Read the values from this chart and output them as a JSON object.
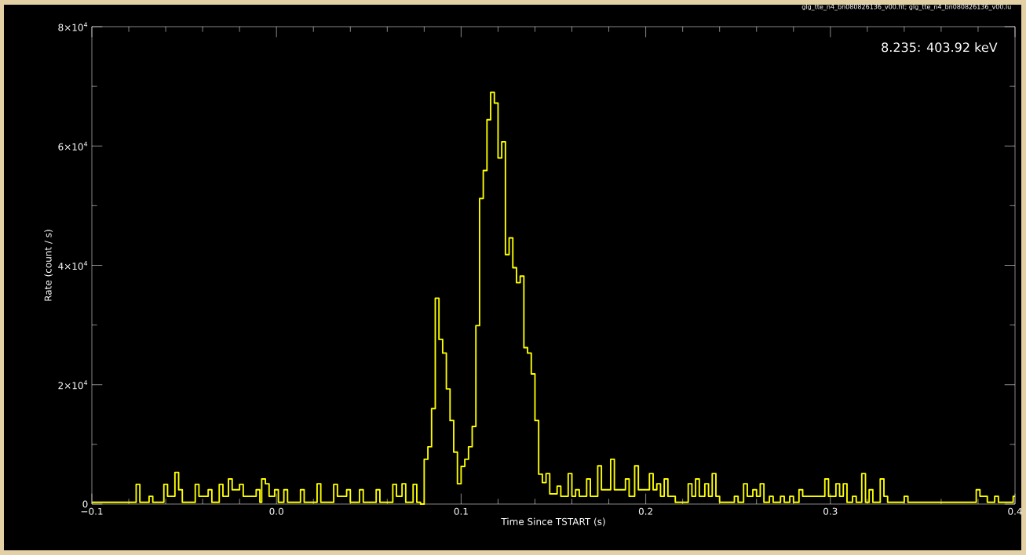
{
  "chart_data": {
    "type": "step",
    "title": "glg_tte_n4_bn080826136_v00.fit; glg_tte_n4_bn080826136_v00.lu",
    "xlabel": "Time Since TSTART (s)",
    "ylabel": "Rate (count / s)",
    "annotations": [
      "8.235: 403.92 keV"
    ],
    "xlim": [
      -0.1,
      0.4
    ],
    "ylim": [
      0,
      80000
    ],
    "xticks": [
      {
        "value": -0.1,
        "label": "−0.1"
      },
      {
        "value": 0,
        "label": "0.0"
      },
      0.1,
      0.2,
      0.3,
      0.4
    ],
    "yticks": [
      0,
      {
        "value": 20000,
        "label": "2×10$^{4}$"
      },
      {
        "value": 40000,
        "label": "4×10$^{4}$"
      },
      {
        "value": 60000,
        "label": "6×10$^{4}$"
      },
      {
        "value": 80000,
        "label": "8×10$^{4}$"
      }
    ],
    "grid": false,
    "marker": "none",
    "line_style": "solid",
    "series": [
      {
        "color": "#ffff00",
        "x": [
          -0.1,
          -0.076,
          -0.074,
          -0.069,
          -0.067,
          -0.061,
          -0.059,
          -0.055,
          -0.053,
          -0.051,
          -0.044,
          -0.042,
          -0.037,
          -0.035,
          -0.031,
          -0.029,
          -0.026,
          -0.024,
          -0.02,
          -0.018,
          -0.011,
          -0.009,
          -0.008,
          -0.006,
          -0.004,
          -0.001,
          0.001,
          0.004,
          0.006,
          0.013,
          0.015,
          0.022,
          0.024,
          0.031,
          0.033,
          0.038,
          0.04,
          0.045,
          0.047,
          0.054,
          0.056,
          0.063,
          0.065,
          0.068,
          0.07,
          0.074,
          0.076,
          0.078,
          0.08,
          0.082,
          0.084,
          0.086,
          0.088,
          0.09,
          0.092,
          0.094,
          0.096,
          0.098,
          0.1,
          0.102,
          0.104,
          0.106,
          0.108,
          0.11,
          0.112,
          0.114,
          0.116,
          0.118,
          0.12,
          0.122,
          0.124,
          0.126,
          0.128,
          0.13,
          0.132,
          0.134,
          0.136,
          0.138,
          0.14,
          0.142,
          0.144,
          0.146,
          0.148,
          0.152,
          0.154,
          0.158,
          0.16,
          0.162,
          0.164,
          0.168,
          0.17,
          0.174,
          0.176,
          0.181,
          0.183,
          0.189,
          0.191,
          0.194,
          0.196,
          0.202,
          0.204,
          0.206,
          0.208,
          0.21,
          0.212,
          0.216,
          0.223,
          0.225,
          0.227,
          0.229,
          0.232,
          0.234,
          0.236,
          0.238,
          0.24,
          0.248,
          0.25,
          0.253,
          0.255,
          0.258,
          0.26,
          0.262,
          0.264,
          0.267,
          0.269,
          0.273,
          0.275,
          0.278,
          0.28,
          0.283,
          0.285,
          0.287,
          0.297,
          0.299,
          0.303,
          0.305,
          0.307,
          0.309,
          0.312,
          0.314,
          0.317,
          0.319,
          0.321,
          0.323,
          0.327,
          0.329,
          0.331,
          0.34,
          0.342,
          0.379,
          0.381,
          0.385,
          0.389,
          0.391,
          0.399,
          0.4
        ],
        "values": [
          300,
          3300,
          300,
          1300,
          300,
          3300,
          1300,
          5300,
          2400,
          300,
          3300,
          1300,
          2400,
          300,
          3300,
          1300,
          4200,
          2400,
          3300,
          1300,
          2400,
          300,
          4200,
          3400,
          1300,
          2400,
          300,
          2400,
          300,
          2400,
          300,
          3400,
          300,
          3300,
          1300,
          2400,
          300,
          2400,
          300,
          2400,
          300,
          3300,
          1300,
          3400,
          300,
          3300,
          300,
          0,
          7500,
          9600,
          16000,
          34500,
          27600,
          25300,
          19300,
          14000,
          8700,
          3400,
          6300,
          7500,
          9600,
          13000,
          29900,
          51200,
          55900,
          64400,
          69000,
          67200,
          58000,
          60700,
          41800,
          44600,
          39600,
          37100,
          38200,
          26200,
          25300,
          21800,
          14000,
          5000,
          3600,
          5100,
          1700,
          3000,
          1300,
          5100,
          1300,
          2400,
          1300,
          4200,
          1300,
          6400,
          2400,
          7500,
          2400,
          4200,
          1300,
          6400,
          2400,
          5100,
          2400,
          3400,
          1300,
          4200,
          1300,
          300,
          3400,
          1300,
          4200,
          1300,
          3400,
          1300,
          5100,
          1300,
          300,
          1300,
          300,
          3400,
          1300,
          2400,
          1300,
          3400,
          300,
          1300,
          300,
          1300,
          300,
          1300,
          300,
          2400,
          1300,
          1300,
          4200,
          1300,
          3400,
          1300,
          3400,
          300,
          1300,
          300,
          5100,
          300,
          2400,
          300,
          4200,
          1300,
          300,
          1300,
          300,
          2400,
          1300,
          300,
          1300,
          300,
          1300,
          1300
        ]
      }
    ]
  }
}
